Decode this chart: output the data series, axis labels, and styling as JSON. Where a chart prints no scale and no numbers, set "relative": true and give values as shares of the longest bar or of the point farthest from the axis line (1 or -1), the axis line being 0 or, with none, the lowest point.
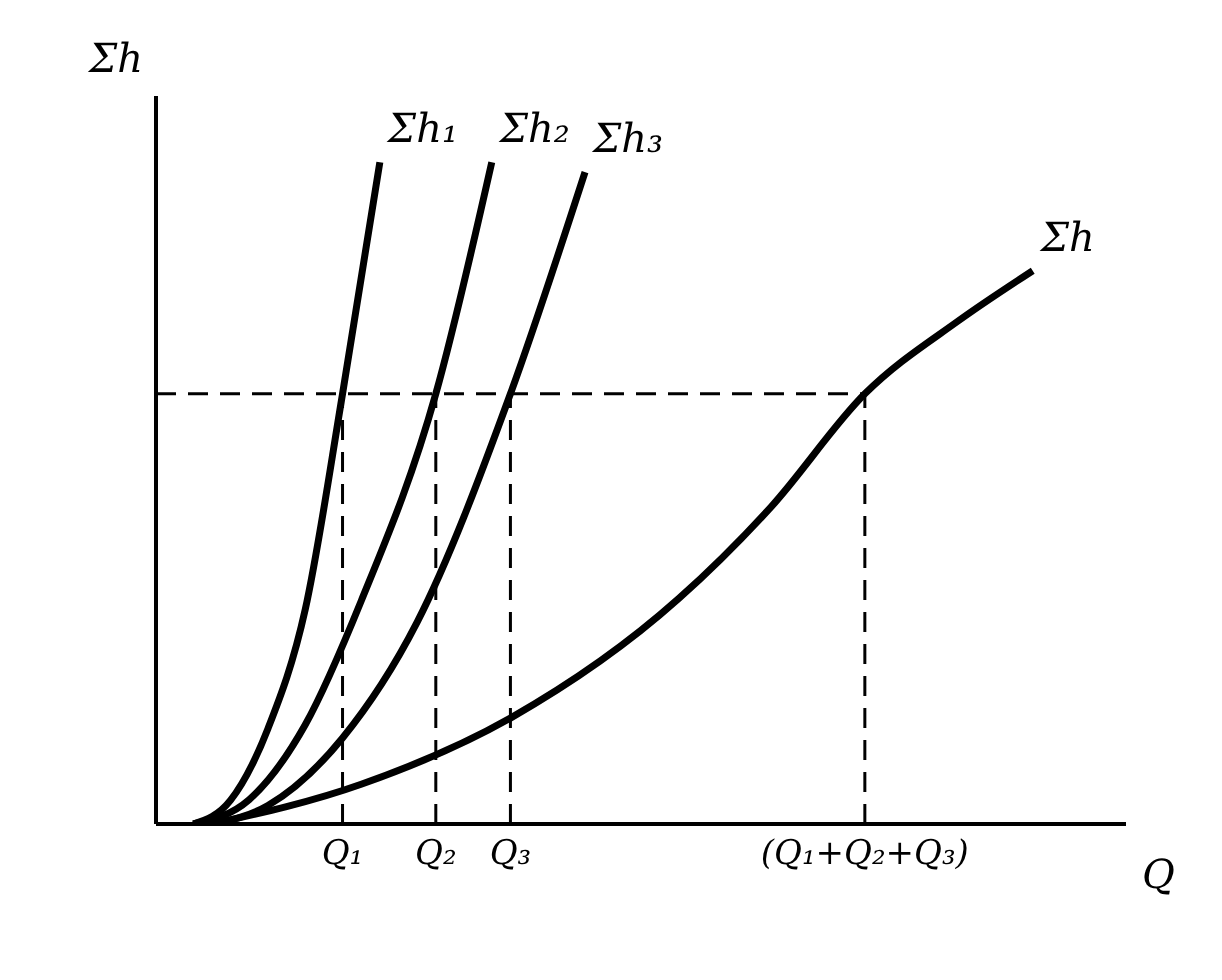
{
  "chart_data": {
    "type": "line",
    "relative": true,
    "xlabel": "Q",
    "ylabel": "Σh",
    "categories": [
      null,
      null,
      null,
      null,
      null,
      null,
      null,
      null,
      null,
      "Q₁",
      null,
      null,
      null,
      null,
      "Q₂",
      null,
      null,
      null,
      "Q₃",
      null,
      null,
      null,
      null,
      null,
      null,
      null,
      null,
      null,
      null,
      null,
      null,
      null,
      null,
      null,
      null,
      null,
      null,
      "(Q₁+Q₂+Q₃)",
      null,
      null,
      null,
      null,
      null,
      null,
      null,
      null,
      null
    ],
    "series": [
      {
        "name": "Σh₁",
        "color": "#000000",
        "values": [
          null,
          0,
          null,
          0.036,
          null,
          0.144,
          null,
          0.324,
          null,
          0.65,
          null,
          1,
          null,
          null,
          null,
          null,
          null,
          null,
          null,
          null,
          null,
          null,
          null,
          null,
          null,
          null,
          null,
          null,
          null,
          null,
          null,
          null,
          null,
          null,
          null,
          null,
          null,
          null,
          null,
          null,
          null,
          null,
          null,
          null,
          null,
          null,
          null
        ]
      },
      {
        "name": "Σh₂",
        "color": "#000000",
        "values": [
          null,
          0,
          null,
          null,
          0.037,
          null,
          null,
          0.15,
          null,
          null,
          0.337,
          null,
          null,
          null,
          0.65,
          null,
          null,
          1,
          null,
          null,
          null,
          null,
          null,
          null,
          null,
          null,
          null,
          null,
          null,
          null,
          null,
          null,
          null,
          null,
          null,
          null,
          null,
          null,
          null,
          null,
          null,
          null,
          null,
          null,
          null,
          null,
          null
        ]
      },
      {
        "name": "Σh₃",
        "color": "#000000",
        "values": [
          null,
          null,
          0,
          null,
          null,
          0.028,
          null,
          null,
          null,
          0.13,
          null,
          null,
          null,
          0.305,
          null,
          null,
          null,
          null,
          0.65,
          null,
          null,
          null,
          0.985,
          null,
          null,
          null,
          null,
          null,
          null,
          null,
          null,
          null,
          null,
          null,
          null,
          null,
          null,
          null,
          null,
          null,
          null,
          null,
          null,
          null,
          null,
          null,
          null
        ]
      },
      {
        "name": "Σh",
        "color": "#000000",
        "values": [
          null,
          null,
          0,
          null,
          null,
          null,
          null,
          null,
          null,
          null,
          0.06,
          null,
          null,
          null,
          null,
          null,
          null,
          null,
          0.16,
          null,
          null,
          null,
          null,
          null,
          null,
          null,
          null,
          0.34,
          null,
          null,
          null,
          null,
          0.48,
          null,
          null,
          null,
          null,
          0.65,
          null,
          null,
          null,
          null,
          0.76,
          null,
          null,
          null,
          0.836
        ]
      }
    ],
    "ref_lines": [
      {
        "axis": "y",
        "value": 0.65,
        "line_style": "dashed",
        "color": "#000000"
      },
      {
        "axis": "x",
        "value": "Q₁",
        "line_style": "dashed",
        "color": "#000000"
      },
      {
        "axis": "x",
        "value": "Q₂",
        "line_style": "dashed",
        "color": "#000000"
      },
      {
        "axis": "x",
        "value": "Q₃",
        "line_style": "dashed",
        "color": "#000000"
      },
      {
        "axis": "x",
        "value": "(Q₁+Q₂+Q₃)",
        "line_style": "dashed",
        "color": "#000000"
      }
    ],
    "grid": false,
    "legend": false,
    "marker": "none",
    "line_style": "solid"
  }
}
